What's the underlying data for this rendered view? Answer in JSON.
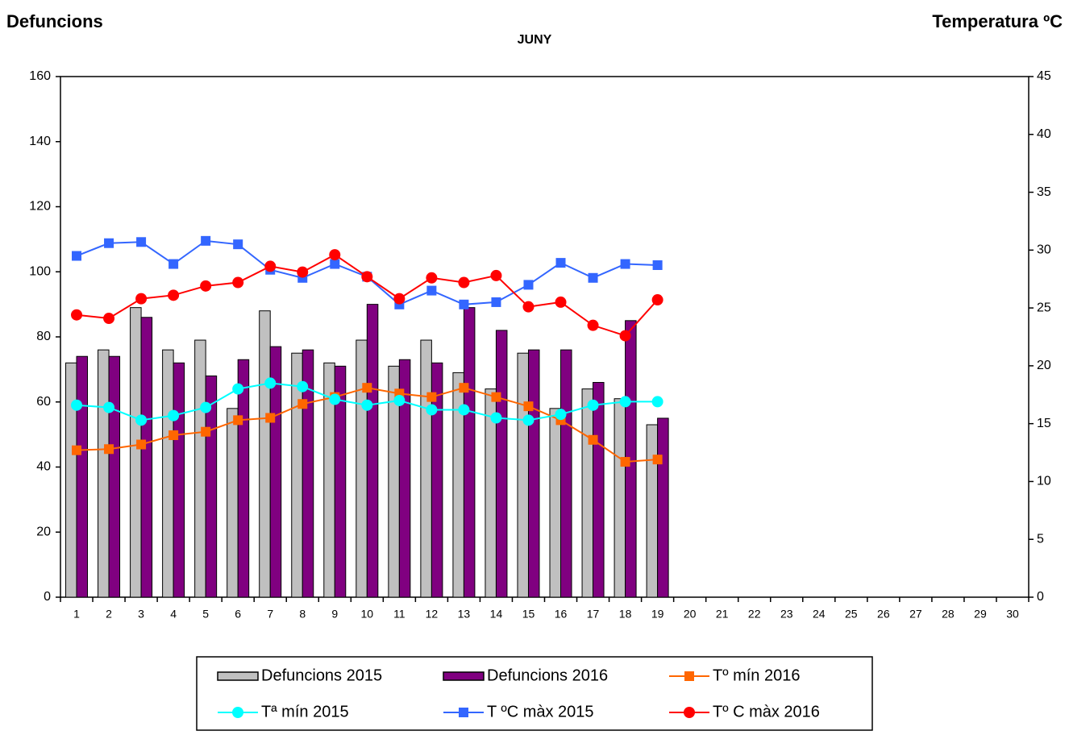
{
  "chart_data": {
    "type": "combo",
    "title": "JUNY",
    "ylabel": "Defuncions",
    "y2label": "Temperatura ºC",
    "categories": [
      "1",
      "2",
      "3",
      "4",
      "5",
      "6",
      "7",
      "8",
      "9",
      "10",
      "11",
      "12",
      "13",
      "14",
      "15",
      "16",
      "17",
      "18",
      "19",
      "20",
      "21",
      "22",
      "23",
      "24",
      "25",
      "26",
      "27",
      "28",
      "29",
      "30"
    ],
    "ylim": [
      0,
      160
    ],
    "yticks": [
      0,
      20,
      40,
      60,
      80,
      100,
      120,
      140,
      160
    ],
    "y2lim": [
      0,
      45
    ],
    "y2ticks": [
      0,
      5,
      10,
      15,
      20,
      25,
      30,
      35,
      40,
      45
    ],
    "series": [
      {
        "name": "Defuncions 2015",
        "type": "bar",
        "color": "#c0c0c0",
        "values": [
          72,
          76,
          89,
          76,
          79,
          58,
          88,
          75,
          72,
          79,
          71,
          79,
          69,
          64,
          75,
          58,
          64,
          61,
          53,
          null,
          null,
          null,
          null,
          null,
          null,
          null,
          null,
          null,
          null,
          null
        ]
      },
      {
        "name": "Defuncions 2016",
        "type": "bar",
        "color": "#800080",
        "values": [
          74,
          74,
          86,
          72,
          68,
          73,
          77,
          76,
          71,
          90,
          73,
          72,
          89,
          82,
          76,
          76,
          66,
          85,
          55,
          null,
          null,
          null,
          null,
          null,
          null,
          null,
          null,
          null,
          null,
          null
        ]
      },
      {
        "name": "Tº mín 2016",
        "type": "line",
        "axis": "y2",
        "marker": "square",
        "color": "#ff6600",
        "values": [
          12.7,
          12.8,
          13.2,
          14.0,
          14.3,
          15.3,
          15.5,
          16.7,
          17.3,
          18.1,
          17.6,
          17.3,
          18.1,
          17.3,
          16.5,
          15.3,
          13.6,
          11.7,
          11.9,
          null,
          null,
          null,
          null,
          null,
          null,
          null,
          null,
          null,
          null,
          null
        ]
      },
      {
        "name": "Tª mín 2015",
        "type": "line",
        "axis": "y2",
        "marker": "circle",
        "color": "#00ffff",
        "values": [
          16.6,
          16.4,
          15.3,
          15.7,
          16.4,
          18.0,
          18.5,
          18.2,
          17.1,
          16.6,
          17.0,
          16.2,
          16.2,
          15.5,
          15.3,
          15.8,
          16.6,
          16.9,
          16.9,
          null,
          null,
          null,
          null,
          null,
          null,
          null,
          null,
          null,
          null,
          null
        ]
      },
      {
        "name": "T ºC màx 2015",
        "type": "line",
        "axis": "y2",
        "marker": "square",
        "color": "#3366ff",
        "values": [
          29.5,
          30.6,
          30.7,
          28.8,
          30.8,
          30.5,
          28.3,
          27.6,
          28.8,
          27.7,
          25.3,
          26.5,
          25.3,
          25.5,
          27.0,
          28.9,
          27.6,
          28.8,
          28.7,
          null,
          null,
          null,
          null,
          null,
          null,
          null,
          null,
          null,
          null,
          null
        ]
      },
      {
        "name": "Tº C màx 2016",
        "type": "line",
        "axis": "y2",
        "marker": "circle",
        "color": "#ff0000",
        "values": [
          24.4,
          24.1,
          25.8,
          26.1,
          26.9,
          27.2,
          28.6,
          28.1,
          29.6,
          27.7,
          25.8,
          27.6,
          27.2,
          27.8,
          25.1,
          25.5,
          23.5,
          22.6,
          25.7,
          null,
          null,
          null,
          null,
          null,
          null,
          null,
          null,
          null,
          null,
          null
        ]
      }
    ]
  }
}
